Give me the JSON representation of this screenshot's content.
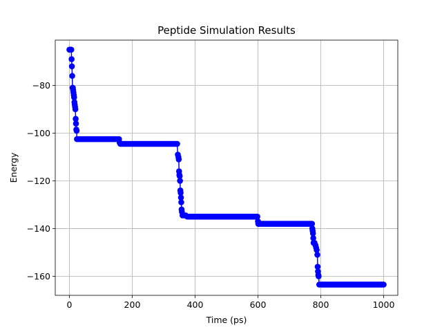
{
  "chart_data": {
    "type": "line",
    "title": "Peptide Simulation Results",
    "xlabel": "Time (ps)",
    "ylabel": "Energy",
    "xlim": [
      -45,
      1045
    ],
    "ylim": [
      -168,
      -61
    ],
    "xticks": [
      0,
      200,
      400,
      600,
      800,
      1000
    ],
    "yticks": [
      -80,
      -100,
      -120,
      -140,
      -160
    ],
    "grid": true,
    "series": [
      {
        "color": "#0000ff",
        "marker": "circle",
        "points": [
          [
            0,
            -65
          ],
          [
            3,
            -65
          ],
          [
            6,
            -65
          ],
          [
            7,
            -69
          ],
          [
            8,
            -72
          ],
          [
            9,
            -76
          ],
          [
            10,
            -81
          ],
          [
            11,
            -81
          ],
          [
            12,
            -82
          ],
          [
            13,
            -83
          ],
          [
            14,
            -84
          ],
          [
            15,
            -85
          ],
          [
            16,
            -87
          ],
          [
            17,
            -88
          ],
          [
            18,
            -89
          ],
          [
            19,
            -90
          ],
          [
            20,
            -94
          ],
          [
            21,
            -96
          ],
          [
            22,
            -98.5
          ],
          [
            23,
            -99
          ],
          [
            24,
            -102.5
          ],
          [
            25,
            -102.5
          ],
          [
            50,
            -102.5
          ],
          [
            100,
            -102.5
          ],
          [
            150,
            -102.5
          ],
          [
            158,
            -102.5
          ],
          [
            160,
            -104
          ],
          [
            162,
            -104.5
          ],
          [
            200,
            -104.5
          ],
          [
            250,
            -104.5
          ],
          [
            300,
            -104.5
          ],
          [
            340,
            -104.5
          ],
          [
            343,
            -104.5
          ],
          [
            345,
            -109
          ],
          [
            347,
            -110
          ],
          [
            348,
            -111
          ],
          [
            349,
            -116
          ],
          [
            350,
            -117.5
          ],
          [
            351,
            -118
          ],
          [
            352,
            -120
          ],
          [
            353,
            -124
          ],
          [
            354,
            -125
          ],
          [
            355,
            -127
          ],
          [
            356,
            -129
          ],
          [
            357,
            -132
          ],
          [
            358,
            -133
          ],
          [
            360,
            -134.5
          ],
          [
            365,
            -134.5
          ],
          [
            370,
            -134.5
          ],
          [
            375,
            -135
          ],
          [
            380,
            -135
          ],
          [
            400,
            -135
          ],
          [
            450,
            -135
          ],
          [
            500,
            -135
          ],
          [
            550,
            -135
          ],
          [
            598,
            -135
          ],
          [
            600,
            -137
          ],
          [
            601,
            -138
          ],
          [
            602,
            -138
          ],
          [
            650,
            -138
          ],
          [
            700,
            -138
          ],
          [
            750,
            -138
          ],
          [
            772,
            -138
          ],
          [
            773,
            -140
          ],
          [
            774,
            -141
          ],
          [
            775,
            -142
          ],
          [
            776,
            -144
          ],
          [
            777,
            -146
          ],
          [
            780,
            -146
          ],
          [
            783,
            -147
          ],
          [
            785,
            -148
          ],
          [
            787,
            -149
          ],
          [
            789,
            -151
          ],
          [
            790,
            -156
          ],
          [
            791,
            -158
          ],
          [
            792,
            -159.5
          ],
          [
            793,
            -160
          ],
          [
            795,
            -163.5
          ],
          [
            800,
            -163.5
          ],
          [
            850,
            -163.5
          ],
          [
            900,
            -163.5
          ],
          [
            950,
            -163.5
          ],
          [
            1000,
            -163.5
          ]
        ]
      }
    ]
  }
}
